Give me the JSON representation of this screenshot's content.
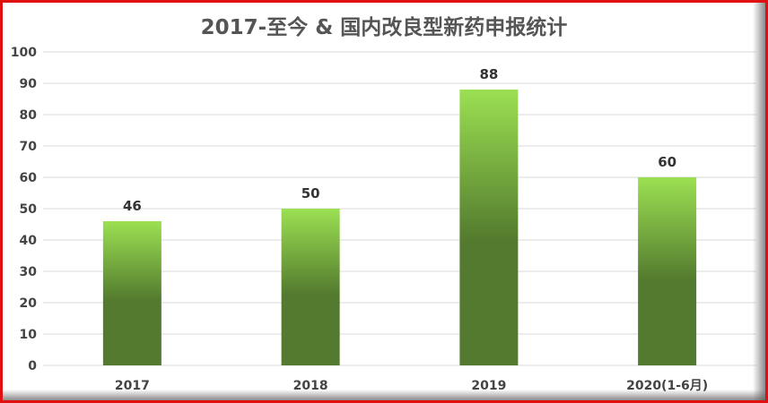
{
  "chart_data": {
    "type": "bar",
    "title": "2017-至今 & 国内改良型新药申报统计",
    "categories": [
      "2017",
      "2018",
      "2019",
      "2020(1-6月)"
    ],
    "values": [
      46,
      50,
      88,
      60
    ],
    "ylim": [
      0,
      100
    ],
    "yticks": [
      0,
      10,
      20,
      30,
      40,
      50,
      60,
      70,
      80,
      90,
      100
    ],
    "xlabel": "",
    "ylabel": "",
    "grid": true,
    "legend": "none",
    "data_labels": true,
    "colors": {
      "bar_top": "#9be052",
      "bar_bottom": "#537a2e",
      "grid": "#d9d9d9",
      "border": "#e01010"
    }
  }
}
